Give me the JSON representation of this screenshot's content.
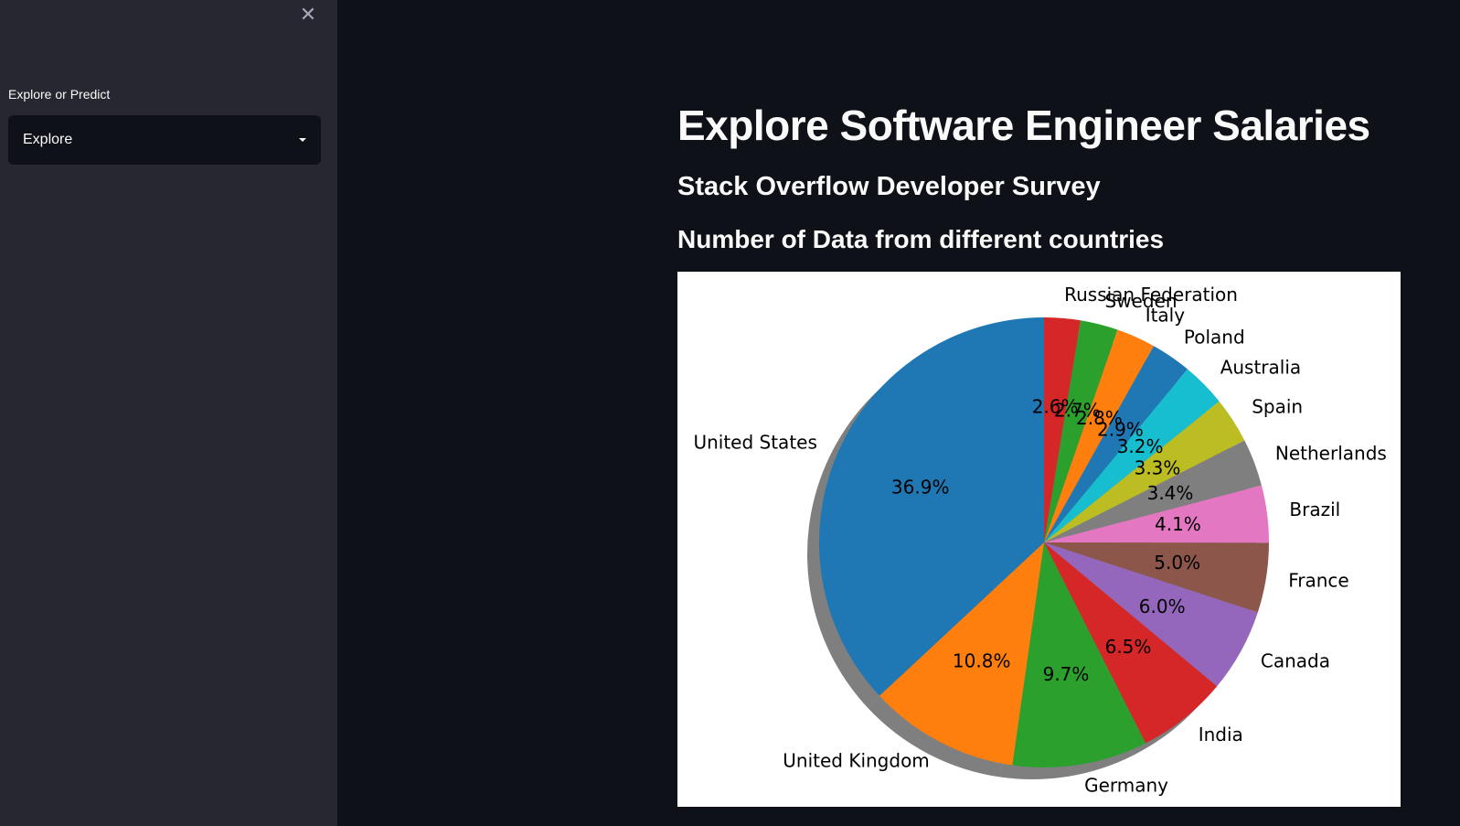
{
  "sidebar": {
    "close_label": "✕",
    "select_label": "Explore or Predict",
    "select_value": "Explore"
  },
  "main": {
    "title": "Explore Software Engineer Salaries",
    "subtitle": "Stack Overflow Developer Survey",
    "section_title": "Number of Data from different countries"
  },
  "chart_data": {
    "type": "pie",
    "labels": [
      "Russian Federation",
      "Sweden",
      "Italy",
      "Poland",
      "Australia",
      "Spain",
      "Netherlands",
      "Brazil",
      "France",
      "Canada",
      "India",
      "Germany",
      "United Kingdom",
      "United States"
    ],
    "values": [
      2.6,
      2.7,
      2.8,
      2.9,
      3.2,
      3.3,
      3.4,
      4.1,
      5.0,
      6.0,
      6.5,
      9.7,
      10.8,
      36.9
    ],
    "value_labels": [
      "2.6%",
      "2.7%",
      "2.8%",
      "2.9%",
      "3.2%",
      "3.3%",
      "3.4%",
      "4.1%",
      "5.0%",
      "6.0%",
      "6.5%",
      "9.7%",
      "10.8%",
      "36.9%"
    ],
    "colors": [
      "#d62728",
      "#2ca02c",
      "#ff7f0e",
      "#1f77b4",
      "#17becf",
      "#bcbd22",
      "#7f7f7f",
      "#e377c2",
      "#8c564b",
      "#9467bd",
      "#d62728",
      "#2ca02c",
      "#ff7f0e",
      "#1f77b4"
    ],
    "shadow": true,
    "start_angle_deg": 90,
    "direction": "clockwise"
  }
}
